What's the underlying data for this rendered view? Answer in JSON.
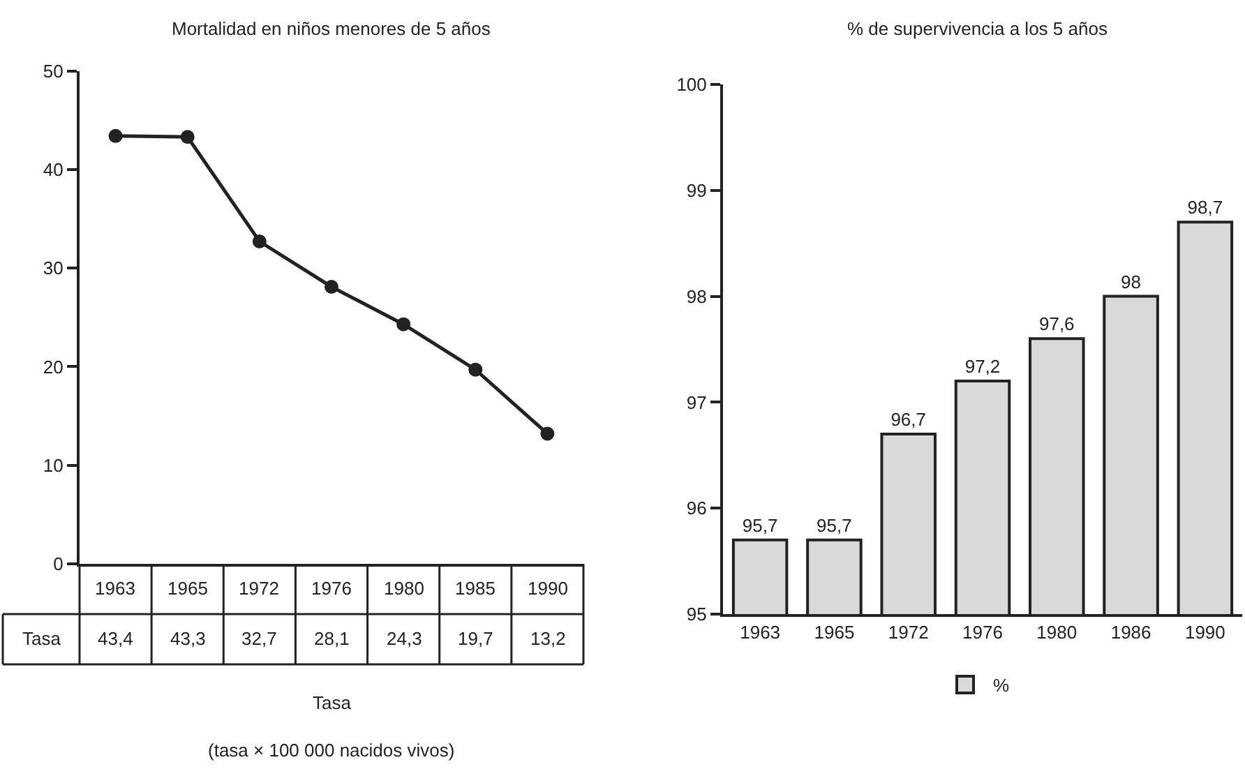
{
  "chart_data": [
    {
      "type": "line",
      "title": "Mortalidad en niños menores de 5 años",
      "xlabel": "Tasa",
      "categories": [
        "1963",
        "1965",
        "1972",
        "1976",
        "1980",
        "1985",
        "1990"
      ],
      "series": [
        {
          "name": "Tasa",
          "color": "#222222",
          "values": [
            43.4,
            43.3,
            32.7,
            28.1,
            24.3,
            19.7,
            13.2
          ],
          "value_labels": [
            "43,4",
            "43,3",
            "32,7",
            "28,1",
            "24,3",
            "19,7",
            "13,2"
          ]
        }
      ],
      "ylim": [
        0,
        50
      ],
      "yticks": [
        0,
        10,
        20,
        30,
        40,
        50
      ],
      "marker": "circle",
      "line_style": "solid",
      "legend": false,
      "tick_labels": "y",
      "annotations": [
        "(tasa × 100 000 nacidos vivos)"
      ]
    },
    {
      "type": "bar",
      "title": "% de supervivencia a los 5 años",
      "categories": [
        "1963",
        "1965",
        "1972",
        "1976",
        "1980",
        "1986",
        "1990"
      ],
      "series": [
        {
          "name": "%",
          "color": "#d9d9d9",
          "values": [
            95.7,
            95.7,
            96.7,
            97.2,
            97.6,
            98,
            98.7
          ],
          "value_labels": [
            "95,7",
            "95,7",
            "96,7",
            "97,2",
            "97,6",
            "98",
            "98,7"
          ]
        }
      ],
      "ylim": [
        95,
        100
      ],
      "yticks": [
        95,
        96,
        97,
        98,
        99,
        100
      ],
      "legend": "bottom"
    }
  ]
}
